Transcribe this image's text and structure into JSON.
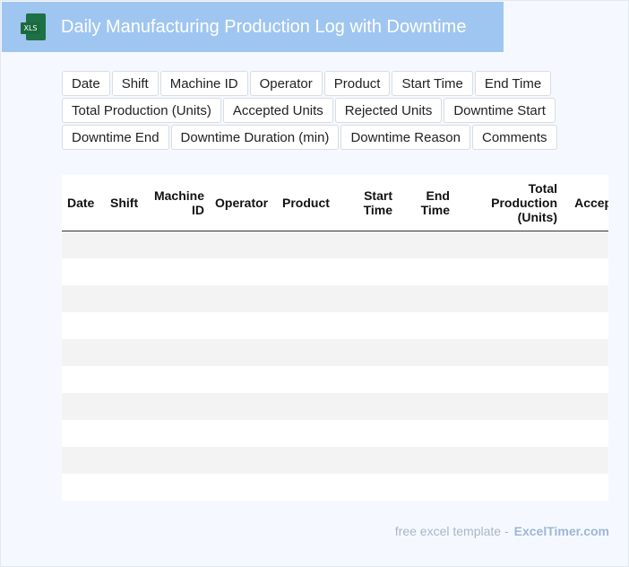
{
  "header": {
    "title": "Daily Manufacturing Production Log with Downtime",
    "icon_label": "XLS"
  },
  "fields": [
    "Date",
    "Shift",
    "Machine ID",
    "Operator",
    "Product",
    "Start Time",
    "End Time",
    "Total Production (Units)",
    "Accepted Units",
    "Rejected Units",
    "Downtime Start",
    "Downtime End",
    "Downtime Duration (min)",
    "Downtime Reason",
    "Comments"
  ],
  "table": {
    "columns": [
      "Date",
      "Shift",
      "Machine ID",
      "Operator",
      "Product",
      "Start Time",
      "End Time",
      "Total Production (Units)",
      "Accepted Units"
    ],
    "empty_rows": 10
  },
  "footer": {
    "text": "free excel template -",
    "brand": "ExcelTimer.com"
  },
  "colors": {
    "banner": "#9fc6f1",
    "excel_green": "#1e7145",
    "stripe": "#f3f3f3"
  }
}
